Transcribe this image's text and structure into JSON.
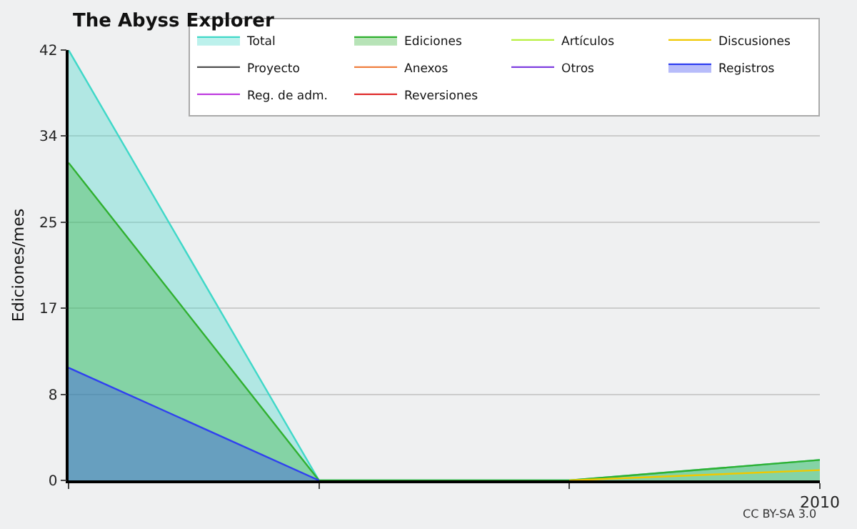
{
  "chart_data": {
    "type": "area",
    "title": "The Abyss Explorer",
    "ylabel": "Ediciones/mes",
    "categories": [
      null,
      null,
      null,
      "2010"
    ],
    "series": [
      {
        "name": "Total",
        "color": "#40d8c8",
        "values": [
          42,
          0,
          0,
          2
        ]
      },
      {
        "name": "Ediciones",
        "color": "#30b030",
        "values": [
          31,
          0,
          0,
          2
        ]
      },
      {
        "name": "Artículos",
        "color": "#b8f040",
        "type": "line",
        "values": [
          null,
          null,
          null,
          null
        ]
      },
      {
        "name": "Discusiones",
        "color": "#f0c800",
        "type": "line",
        "values": [
          null,
          null,
          0,
          1
        ]
      },
      {
        "name": "Proyecto",
        "color": "#505050",
        "type": "line",
        "values": [
          null,
          null,
          null,
          null
        ]
      },
      {
        "name": "Anexos",
        "color": "#f08040",
        "type": "line",
        "values": [
          null,
          null,
          null,
          null
        ]
      },
      {
        "name": "Otros",
        "color": "#8040e0",
        "type": "line",
        "values": [
          null,
          null,
          null,
          null
        ]
      },
      {
        "name": "Registros",
        "color": "#3040f0",
        "values": [
          11,
          0,
          null,
          null
        ]
      },
      {
        "name": "Reg. de adm.",
        "color": "#c040e0",
        "type": "line",
        "values": [
          null,
          null,
          null,
          null
        ]
      },
      {
        "name": "Reversiones",
        "color": "#e03030",
        "type": "line",
        "values": [
          null,
          null,
          null,
          null
        ]
      }
    ],
    "ylim": [
      0,
      42
    ],
    "yticks": [
      0,
      {
        "value": 8.4,
        "label": "8"
      },
      {
        "value": 16.8,
        "label": "17"
      },
      {
        "value": 25.2,
        "label": "25"
      },
      {
        "value": 33.6,
        "label": "34"
      },
      42
    ],
    "grid": "y",
    "legend": "top right",
    "annotations": [
      "CC BY-SA 3.0"
    ]
  }
}
